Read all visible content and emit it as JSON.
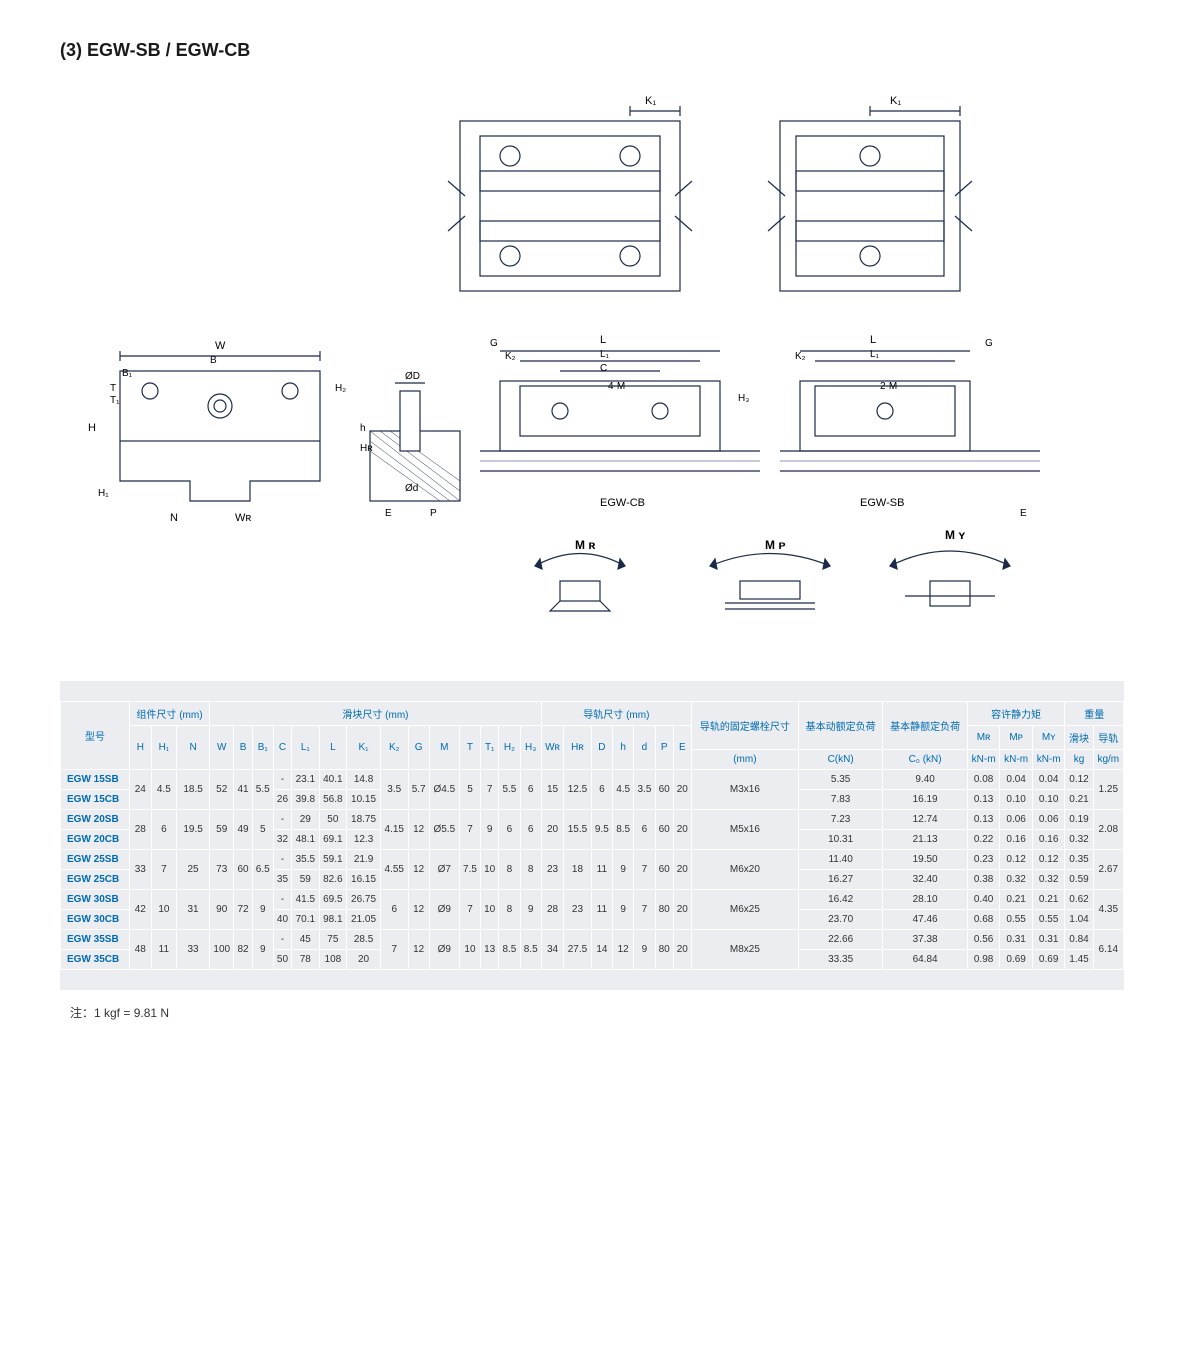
{
  "title": "(3) EGW-SB / EGW-CB",
  "diagram_labels": {
    "K1_a": "K₁",
    "K1_b": "K₁",
    "G": "G",
    "L": "L",
    "L1": "L₁",
    "C": "C",
    "four_M": "4-M",
    "two_M": "2-M",
    "egw_cb": "EGW-CB",
    "egw_sb": "EGW-SB",
    "W": "W",
    "B": "B",
    "B1": "B₁",
    "H": "H",
    "H1": "H₁",
    "H2": "H₂",
    "H3": "H₃",
    "HR": "Hʀ",
    "T": "T",
    "T1": "T₁",
    "N": "N",
    "WR": "Wʀ",
    "OD": "ØD",
    "Od": "Ød",
    "h": "h",
    "E": "E",
    "P": "P",
    "K2": "K₂",
    "MR": "M ʀ",
    "MP": "M ᴘ",
    "MY": "M ʏ"
  },
  "headers": {
    "model": "型号",
    "assembly": "组件尺寸 (mm)",
    "block": "滑块尺寸 (mm)",
    "rail": "导轨尺寸 (mm)",
    "bolt": "导轨的固定螺栓尺寸",
    "dynamic": "基本动额定负荷",
    "static_load": "基本静额定负荷",
    "moment": "容许静力矩",
    "weight": "重量",
    "H": "H",
    "H1": "H₁",
    "N": "N",
    "W": "W",
    "B": "B",
    "B1": "B₁",
    "Cdim": "C",
    "L1": "L₁",
    "L": "L",
    "K1": "K₁",
    "K2": "K₂",
    "G": "G",
    "M": "M",
    "T": "T",
    "T1": "T₁",
    "H2": "H₂",
    "H3": "H₃",
    "WR": "Wʀ",
    "HR": "Hʀ",
    "D": "D",
    "hh": "h",
    "d": "d",
    "P": "P",
    "E": "E",
    "bolt_mm": "(mm)",
    "C_kn": "C(kN)",
    "C0_kn": "C₀ (kN)",
    "MRh": "Mʀ",
    "MPh": "Mᴘ",
    "MYh": "Mʏ",
    "kNm": "kN-m",
    "block_wt": "滑块",
    "rail_wt": "导轨",
    "kg": "kg",
    "kgm": "kg/m"
  },
  "rows": [
    {
      "model": "EGW 15SB",
      "H": "24",
      "H1": "4.5",
      "N": "18.5",
      "W": "52",
      "B": "41",
      "B1": "5.5",
      "C": "-",
      "L1": "23.1",
      "L": "40.1",
      "K1": "14.8",
      "K2": "3.5",
      "G": "5.7",
      "M": "Ø4.5",
      "T": "5",
      "T1": "7",
      "H2": "5.5",
      "H3": "6",
      "WR": "15",
      "HR": "12.5",
      "D": "6",
      "h": "4.5",
      "d": "3.5",
      "P": "60",
      "E": "20",
      "bolt": "M3x16",
      "Cdyn": "5.35",
      "C0": "9.40",
      "MR": "0.08",
      "MP": "0.04",
      "MY": "0.04",
      "wb": "0.12",
      "wr": "1.25"
    },
    {
      "model": "EGW 15CB",
      "C": "26",
      "L1": "39.8",
      "L": "56.8",
      "K1": "10.15",
      "Cdyn": "7.83",
      "C0": "16.19",
      "MR": "0.13",
      "MP": "0.10",
      "MY": "0.10",
      "wb": "0.21"
    },
    {
      "model": "EGW 20SB",
      "H": "28",
      "H1": "6",
      "N": "19.5",
      "W": "59",
      "B": "49",
      "B1": "5",
      "C": "-",
      "L1": "29",
      "L": "50",
      "K1": "18.75",
      "K2": "4.15",
      "G": "12",
      "M": "Ø5.5",
      "T": "7",
      "T1": "9",
      "H2": "6",
      "H3": "6",
      "WR": "20",
      "HR": "15.5",
      "D": "9.5",
      "h": "8.5",
      "d": "6",
      "P": "60",
      "E": "20",
      "bolt": "M5x16",
      "Cdyn": "7.23",
      "C0": "12.74",
      "MR": "0.13",
      "MP": "0.06",
      "MY": "0.06",
      "wb": "0.19",
      "wr": "2.08"
    },
    {
      "model": "EGW 20CB",
      "C": "32",
      "L1": "48.1",
      "L": "69.1",
      "K1": "12.3",
      "Cdyn": "10.31",
      "C0": "21.13",
      "MR": "0.22",
      "MP": "0.16",
      "MY": "0.16",
      "wb": "0.32"
    },
    {
      "model": "EGW 25SB",
      "H": "33",
      "H1": "7",
      "N": "25",
      "W": "73",
      "B": "60",
      "B1": "6.5",
      "C": "-",
      "L1": "35.5",
      "L": "59.1",
      "K1": "21.9",
      "K2": "4.55",
      "G": "12",
      "M": "Ø7",
      "T": "7.5",
      "T1": "10",
      "H2": "8",
      "H3": "8",
      "WR": "23",
      "HR": "18",
      "D": "11",
      "h": "9",
      "d": "7",
      "P": "60",
      "E": "20",
      "bolt": "M6x20",
      "Cdyn": "11.40",
      "C0": "19.50",
      "MR": "0.23",
      "MP": "0.12",
      "MY": "0.12",
      "wb": "0.35",
      "wr": "2.67"
    },
    {
      "model": "EGW 25CB",
      "C": "35",
      "L1": "59",
      "L": "82.6",
      "K1": "16.15",
      "Cdyn": "16.27",
      "C0": "32.40",
      "MR": "0.38",
      "MP": "0.32",
      "MY": "0.32",
      "wb": "0.59"
    },
    {
      "model": "EGW 30SB",
      "H": "42",
      "H1": "10",
      "N": "31",
      "W": "90",
      "B": "72",
      "B1": "9",
      "C": "-",
      "L1": "41.5",
      "L": "69.5",
      "K1": "26.75",
      "K2": "6",
      "G": "12",
      "M": "Ø9",
      "T": "7",
      "T1": "10",
      "H2": "8",
      "H3": "9",
      "WR": "28",
      "HR": "23",
      "D": "11",
      "h": "9",
      "d": "7",
      "P": "80",
      "E": "20",
      "bolt": "M6x25",
      "Cdyn": "16.42",
      "C0": "28.10",
      "MR": "0.40",
      "MP": "0.21",
      "MY": "0.21",
      "wb": "0.62",
      "wr": "4.35"
    },
    {
      "model": "EGW 30CB",
      "C": "40",
      "L1": "70.1",
      "L": "98.1",
      "K1": "21.05",
      "Cdyn": "23.70",
      "C0": "47.46",
      "MR": "0.68",
      "MP": "0.55",
      "MY": "0.55",
      "wb": "1.04"
    },
    {
      "model": "EGW 35SB",
      "H": "48",
      "H1": "11",
      "N": "33",
      "W": "100",
      "B": "82",
      "B1": "9",
      "C": "-",
      "L1": "45",
      "L": "75",
      "K1": "28.5",
      "K2": "7",
      "G": "12",
      "M": "Ø9",
      "T": "10",
      "T1": "13",
      "H2": "8.5",
      "H3": "8.5",
      "WR": "34",
      "HR": "27.5",
      "D": "14",
      "h": "12",
      "d": "9",
      "P": "80",
      "E": "20",
      "bolt": "M8x25",
      "Cdyn": "22.66",
      "C0": "37.38",
      "MR": "0.56",
      "MP": "0.31",
      "MY": "0.31",
      "wb": "0.84",
      "wr": "6.14"
    },
    {
      "model": "EGW 35CB",
      "C": "50",
      "L1": "78",
      "L": "108",
      "K1": "20",
      "Cdyn": "33.35",
      "C0": "64.84",
      "MR": "0.98",
      "MP": "0.69",
      "MY": "0.69",
      "wb": "1.45"
    }
  ],
  "footnote": "注：1 kgf = 9.81 N",
  "style": {
    "header_color": "#006bb3",
    "table_bg": "#ebedf0",
    "border_color": "#ffffff",
    "text_color": "#333333",
    "font_size_table": 10,
    "font_size_title": 18
  }
}
